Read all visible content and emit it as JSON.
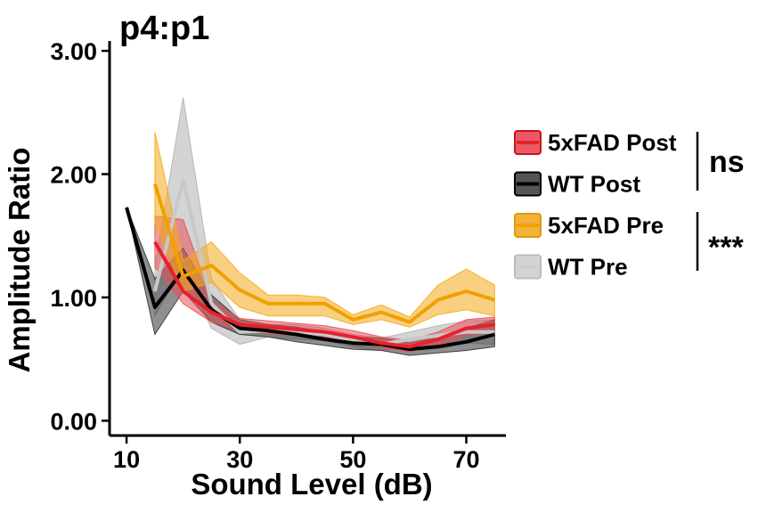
{
  "chart_data": {
    "type": "line",
    "title": "p4:p1",
    "xlabel": "Sound Level (dB)",
    "ylabel": "Amplitude Ratio",
    "xlim": [
      7,
      77
    ],
    "ylim": [
      -0.12,
      3.08
    ],
    "xticks": [
      10,
      30,
      50,
      70
    ],
    "xtick_labels": [
      "10",
      "30",
      "50",
      "70"
    ],
    "yticks": [
      0,
      1,
      2,
      3
    ],
    "ytick_labels": [
      "0.00",
      "1.00",
      "2.00",
      "3.00"
    ],
    "grid": false,
    "legend_position": "right",
    "series": [
      {
        "name": "WT Pre",
        "color": "#c8c8c8",
        "band_color": "#b0b0b0",
        "x": [
          15,
          20,
          25,
          30,
          35,
          40,
          45,
          50,
          55,
          60,
          65,
          70,
          75
        ],
        "y": [
          1.05,
          1.95,
          0.95,
          0.72,
          0.73,
          0.72,
          0.7,
          0.65,
          0.62,
          0.66,
          0.69,
          0.72,
          0.72
        ],
        "lower": [
          0.85,
          1.25,
          0.75,
          0.62,
          0.68,
          0.66,
          0.65,
          0.6,
          0.57,
          0.6,
          0.61,
          0.63,
          0.62
        ],
        "upper": [
          1.25,
          2.62,
          1.15,
          0.82,
          0.78,
          0.78,
          0.75,
          0.7,
          0.67,
          0.72,
          0.77,
          0.81,
          0.82
        ]
      },
      {
        "name": "WT Post",
        "color": "#000000",
        "band_color": "#333333",
        "x": [
          10,
          15,
          20,
          25,
          30,
          35,
          40,
          45,
          50,
          55,
          60,
          65,
          70,
          75
        ],
        "y": [
          1.73,
          0.92,
          1.22,
          0.9,
          0.75,
          0.73,
          0.7,
          0.66,
          0.63,
          0.62,
          0.58,
          0.6,
          0.64,
          0.7
        ],
        "lower": [
          1.73,
          0.7,
          1.05,
          0.8,
          0.7,
          0.68,
          0.64,
          0.61,
          0.58,
          0.57,
          0.53,
          0.55,
          0.57,
          0.6
        ],
        "upper": [
          1.73,
          1.15,
          1.4,
          1.02,
          0.82,
          0.78,
          0.76,
          0.72,
          0.68,
          0.67,
          0.63,
          0.68,
          0.75,
          0.82
        ]
      },
      {
        "name": "5xFAD Post",
        "color": "#e8202a",
        "band_color": "#e8505a",
        "x": [
          15,
          20,
          25,
          30,
          35,
          40,
          45,
          50,
          55,
          60,
          65,
          70,
          75
        ],
        "y": [
          1.45,
          1.05,
          0.88,
          0.78,
          0.76,
          0.74,
          0.72,
          0.68,
          0.63,
          0.6,
          0.66,
          0.75,
          0.78
        ],
        "lower": [
          1.25,
          0.95,
          0.8,
          0.73,
          0.71,
          0.69,
          0.68,
          0.64,
          0.59,
          0.56,
          0.61,
          0.69,
          0.72
        ],
        "upper": [
          1.66,
          1.63,
          0.98,
          0.83,
          0.81,
          0.79,
          0.77,
          0.73,
          0.68,
          0.65,
          0.72,
          0.82,
          0.84
        ]
      },
      {
        "name": "5xFAD Pre",
        "color": "#f0a000",
        "band_color": "#f4aa1a",
        "x": [
          15,
          20,
          25,
          30,
          35,
          40,
          45,
          50,
          55,
          60,
          65,
          70,
          75
        ],
        "y": [
          1.92,
          1.17,
          1.26,
          1.06,
          0.95,
          0.95,
          0.95,
          0.82,
          0.88,
          0.8,
          0.98,
          1.05,
          0.98
        ],
        "lower": [
          1.6,
          1.05,
          1.12,
          0.92,
          0.85,
          0.85,
          0.85,
          0.78,
          0.82,
          0.76,
          0.86,
          0.9,
          0.85
        ],
        "upper": [
          2.34,
          1.3,
          1.45,
          1.2,
          1.02,
          1.02,
          1.0,
          0.86,
          0.94,
          0.84,
          1.1,
          1.23,
          1.1
        ]
      }
    ],
    "legend": [
      {
        "label": "5xFAD Post",
        "color": "#e8202a",
        "fill": "#ea5a64",
        "border": "#d01018"
      },
      {
        "label": "WT Post",
        "color": "#000000",
        "fill": "#555555",
        "border": "#000000"
      },
      {
        "label": "5xFAD Pre",
        "color": "#f0a000",
        "fill": "#f2b23a",
        "border": "#e09a00"
      },
      {
        "label": "WT Pre",
        "color": "#cfcfcf",
        "fill": "#d4d4d4",
        "border": "#bbbbbb"
      }
    ],
    "annotations": [
      {
        "text": "ns",
        "groups": [
          "5xFAD Post",
          "WT Post"
        ]
      },
      {
        "text": "***",
        "groups": [
          "5xFAD Pre",
          "WT Pre"
        ]
      }
    ]
  }
}
